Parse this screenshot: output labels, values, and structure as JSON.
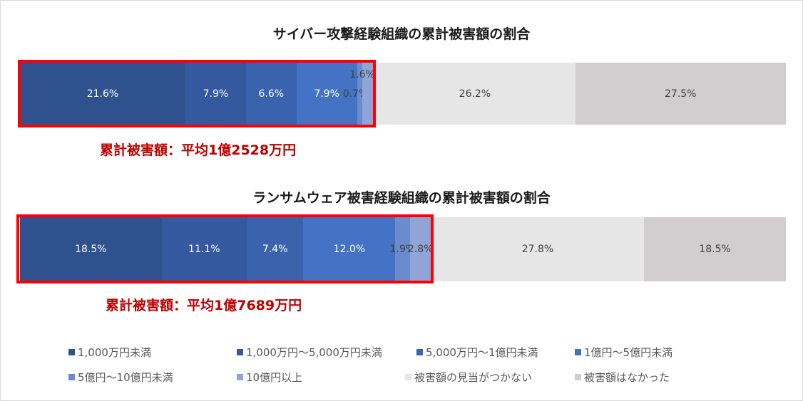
{
  "chart_data": [
    {
      "type": "bar",
      "orientation": "horizontal",
      "stacked": "100%",
      "title": "サイバー攻撃経験組織の累計被害額の割合",
      "values": [
        21.6,
        7.9,
        6.6,
        7.9,
        0.7,
        1.6,
        26.2,
        27.5
      ],
      "labels": [
        "21.6%",
        "7.9%",
        "6.6%",
        "7.9%",
        "0.7%",
        "1.6%",
        "26.2%",
        "27.5%"
      ],
      "annotation": "累計被害額：平均1億2528万円"
    },
    {
      "type": "bar",
      "orientation": "horizontal",
      "stacked": "100%",
      "title": "ランサムウェア被害経験組織の累計被害額の割合",
      "values": [
        18.5,
        11.1,
        7.4,
        12.0,
        1.9,
        2.8,
        27.8,
        18.5
      ],
      "labels": [
        "18.5%",
        "11.1%",
        "7.4%",
        "12.0%",
        "1.9%",
        "2.8%",
        "27.8%",
        "18.5%"
      ],
      "annotation": "累計被害額：平均1億7689万円"
    }
  ],
  "legend": [
    "1,000万円未満",
    "1,000万円～5,000万円未満",
    "5,000万円～1億円未満",
    "1億円～5億円未満",
    "5億円～10億円未満",
    "10億円以上",
    "被害額の見当がつかない",
    "被害額はなかった"
  ],
  "colors": [
    "#2f528f",
    "#34599f",
    "#3a62ad",
    "#4472c4",
    "#6a8ccf",
    "#8fa5d7",
    "#e6e6e6",
    "#d0cece"
  ],
  "label_colors": [
    "#ffffff",
    "#ffffff",
    "#ffffff",
    "#ffffff",
    "#404040",
    "#404040",
    "#404040",
    "#404040"
  ],
  "highlight_color": "#ff0000"
}
